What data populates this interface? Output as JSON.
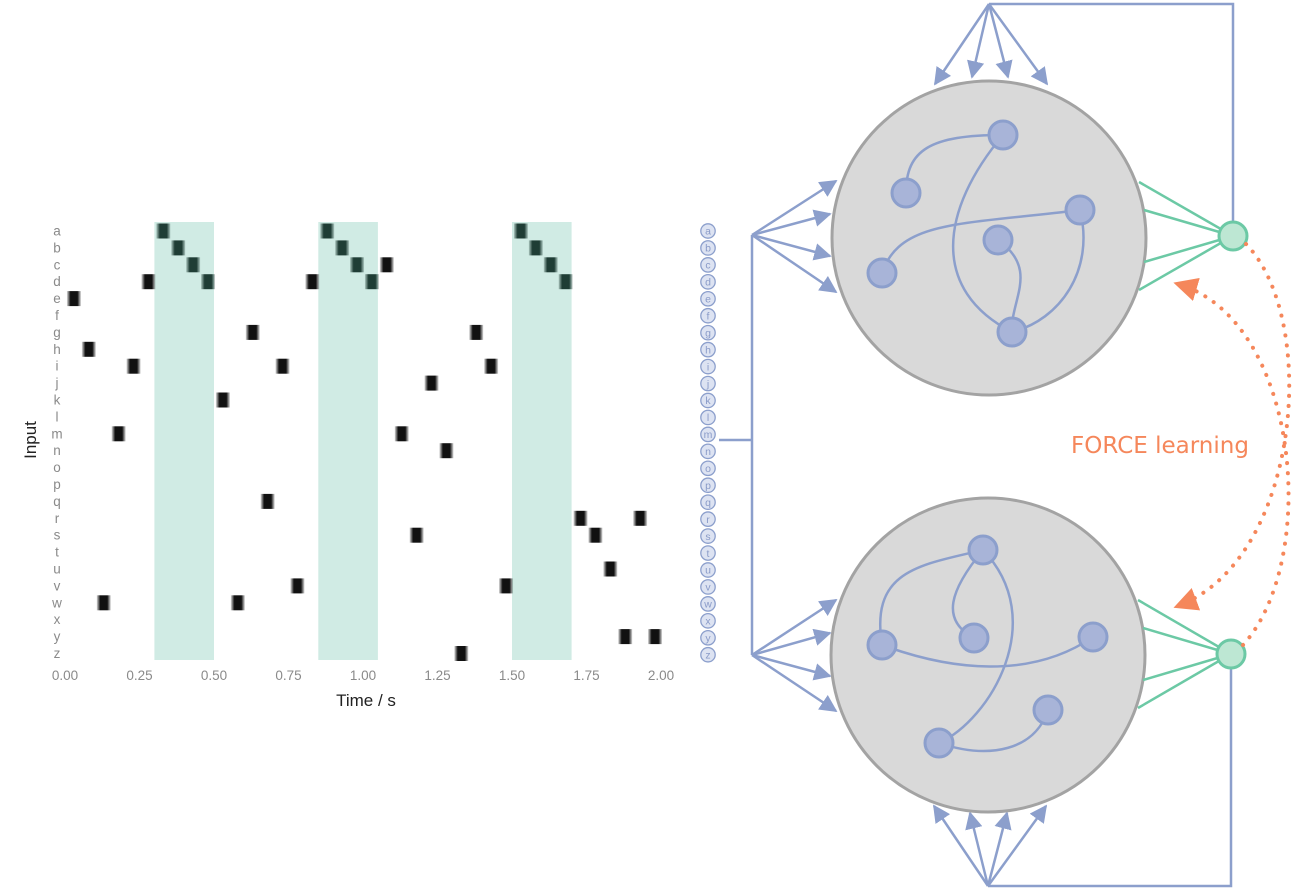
{
  "raster": {
    "y_axis_label": "Input",
    "x_axis_label": "Time / s",
    "input_labels": [
      "a",
      "b",
      "c",
      "d",
      "e",
      "f",
      "g",
      "h",
      "i",
      "j",
      "k",
      "l",
      "m",
      "n",
      "o",
      "p",
      "q",
      "r",
      "s",
      "t",
      "u",
      "v",
      "w",
      "x",
      "y",
      "z"
    ],
    "x_ticks": [
      "0.00",
      "0.25",
      "0.50",
      "0.75",
      "1.00",
      "1.25",
      "1.50",
      "1.75",
      "2.00"
    ]
  },
  "chart_data": {
    "type": "scatter",
    "title": "",
    "xlabel": "Time / s",
    "ylabel": "Input",
    "xlim": [
      0.0,
      2.0
    ],
    "x_ticks": [
      0.0,
      0.25,
      0.5,
      0.75,
      1.0,
      1.25,
      1.5,
      1.75,
      2.0
    ],
    "categories": [
      "a",
      "b",
      "c",
      "d",
      "e",
      "f",
      "g",
      "h",
      "i",
      "j",
      "k",
      "l",
      "m",
      "n",
      "o",
      "p",
      "q",
      "r",
      "s",
      "t",
      "u",
      "v",
      "w",
      "x",
      "y",
      "z"
    ],
    "highlight_windows": [
      [
        0.3,
        0.5
      ],
      [
        0.85,
        1.05
      ],
      [
        1.5,
        1.7
      ]
    ],
    "pattern_spikes": [
      {
        "t": 0.33,
        "input": "a"
      },
      {
        "t": 0.38,
        "input": "b"
      },
      {
        "t": 0.43,
        "input": "c"
      },
      {
        "t": 0.48,
        "input": "d"
      },
      {
        "t": 0.88,
        "input": "a"
      },
      {
        "t": 0.93,
        "input": "b"
      },
      {
        "t": 0.98,
        "input": "c"
      },
      {
        "t": 1.03,
        "input": "d"
      },
      {
        "t": 1.53,
        "input": "a"
      },
      {
        "t": 1.58,
        "input": "b"
      },
      {
        "t": 1.63,
        "input": "c"
      },
      {
        "t": 1.68,
        "input": "d"
      }
    ],
    "distractor_spikes": [
      {
        "t": 0.03,
        "input": "e"
      },
      {
        "t": 0.08,
        "input": "h"
      },
      {
        "t": 0.13,
        "input": "w"
      },
      {
        "t": 0.18,
        "input": "m"
      },
      {
        "t": 0.23,
        "input": "i"
      },
      {
        "t": 0.28,
        "input": "d"
      },
      {
        "t": 0.53,
        "input": "k"
      },
      {
        "t": 0.58,
        "input": "w"
      },
      {
        "t": 0.63,
        "input": "g"
      },
      {
        "t": 0.68,
        "input": "q"
      },
      {
        "t": 0.73,
        "input": "i"
      },
      {
        "t": 0.78,
        "input": "v"
      },
      {
        "t": 0.83,
        "input": "d"
      },
      {
        "t": 1.08,
        "input": "c"
      },
      {
        "t": 1.13,
        "input": "m"
      },
      {
        "t": 1.18,
        "input": "s"
      },
      {
        "t": 1.23,
        "input": "j"
      },
      {
        "t": 1.28,
        "input": "n"
      },
      {
        "t": 1.33,
        "input": "z"
      },
      {
        "t": 1.38,
        "input": "g"
      },
      {
        "t": 1.43,
        "input": "i"
      },
      {
        "t": 1.48,
        "input": "v"
      },
      {
        "t": 1.73,
        "input": "r"
      },
      {
        "t": 1.78,
        "input": "s"
      },
      {
        "t": 1.83,
        "input": "u"
      },
      {
        "t": 1.88,
        "input": "y"
      },
      {
        "t": 1.93,
        "input": "r"
      },
      {
        "t": 1.98,
        "input": "y"
      }
    ]
  },
  "network": {
    "input_column_letters": [
      "a",
      "b",
      "c",
      "d",
      "e",
      "f",
      "g",
      "h",
      "i",
      "j",
      "k",
      "l",
      "m",
      "n",
      "o",
      "p",
      "q",
      "r",
      "s",
      "t",
      "u",
      "v",
      "w",
      "x",
      "y",
      "z"
    ],
    "force_label": "FORCE learning"
  },
  "colors": {
    "highlight": "#d0ebe4",
    "spike": "#111111",
    "pattern_spike": "#1f3d35",
    "connection": "#8c9fcc",
    "neuron_fill": "#a8b4d8",
    "neuron_stroke": "#8c9fcc",
    "reservoir_fill": "#d9d9d9",
    "reservoir_stroke": "#a3a3a3",
    "readout": "#6cc9a5",
    "readout_fill": "#bde7d3",
    "force": "#f5875b"
  }
}
